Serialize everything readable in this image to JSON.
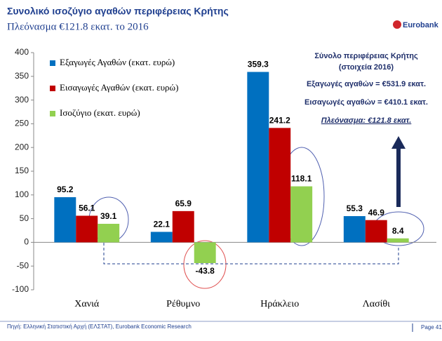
{
  "header": {
    "logo": "Eurobank"
  },
  "chart_data": {
    "type": "bar",
    "title": "Συνολικό ισοζύγιο αγαθών περιφέρειας Κρήτης",
    "subtitle": "Πλεόνασμα €121.8 εκατ. το 2016",
    "categories": [
      "Χανιά",
      "Ρέθυμνο",
      "Ηράκλειο",
      "Λασίθι"
    ],
    "series": [
      {
        "name": "Εξαγωγές Αγαθών (εκατ. ευρώ)",
        "color": "#0070c0",
        "values": [
          95.2,
          22.1,
          359.3,
          55.3
        ]
      },
      {
        "name": "Εισαγωγές Αγαθών (εκατ. ευρώ)",
        "color": "#c00000",
        "values": [
          56.1,
          65.9,
          241.2,
          46.9
        ]
      },
      {
        "name": "Ισοζύγιο (εκατ. ευρώ)",
        "color": "#92d050",
        "values": [
          39.1,
          -43.8,
          118.1,
          8.4
        ]
      }
    ],
    "ylim": [
      -100,
      400
    ],
    "yticks": [
      -100,
      -50,
      0,
      50,
      100,
      150,
      200,
      250,
      300,
      350,
      400
    ],
    "legend": "upper left",
    "annotations": [
      "Σύνολο περιφέρειας Κρήτης",
      "(στοιχεία 2016)",
      "Εξαγωγές αγαθών = €531.9 εκατ.",
      "Εισαγωγές αγαθών = €410.1 εκατ.",
      "Πλεόνασμα: €121.8 εκατ."
    ]
  },
  "footer": {
    "source": "Πηγή: Ελληνική Στατιστική Αρχή (ΕΛΣΤΑΤ), Eurobank Economic Research",
    "page": "Page 41"
  }
}
